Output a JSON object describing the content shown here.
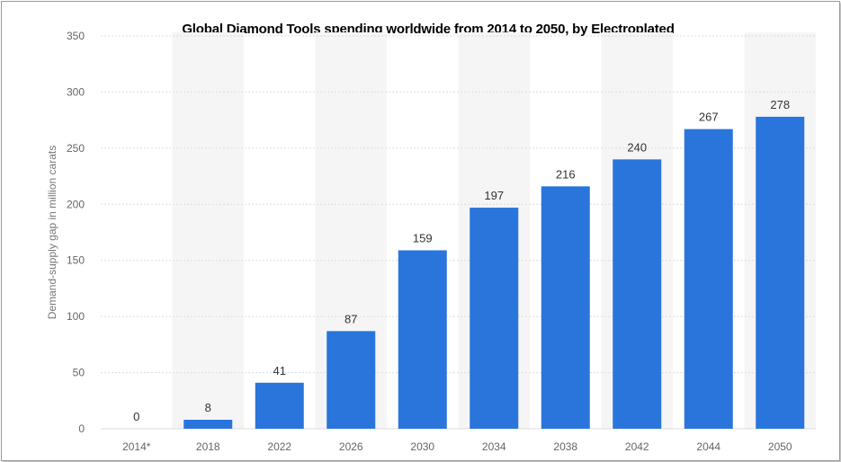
{
  "chart_data": {
    "type": "bar",
    "title": "Global Diamond Tools spending worldwide from 2014 to 2050, by Electroplated",
    "ylabel": "Demand-supply gap in million carats",
    "xlabel": "",
    "categories": [
      "2014*",
      "2018",
      "2022",
      "2026",
      "2030",
      "2034",
      "2038",
      "2042",
      "2044",
      "2050"
    ],
    "values": [
      0,
      8,
      41,
      87,
      159,
      197,
      216,
      240,
      267,
      278
    ],
    "value_labels": [
      "0",
      "8",
      "41",
      "87",
      "159",
      "197",
      "216",
      "240",
      "267",
      "278"
    ],
    "ylim": [
      0,
      350
    ],
    "yticks": [
      "0",
      "50",
      "100",
      "150",
      "200",
      "250",
      "300",
      "350"
    ],
    "grid": true,
    "bar_color": "#2a75dc"
  }
}
